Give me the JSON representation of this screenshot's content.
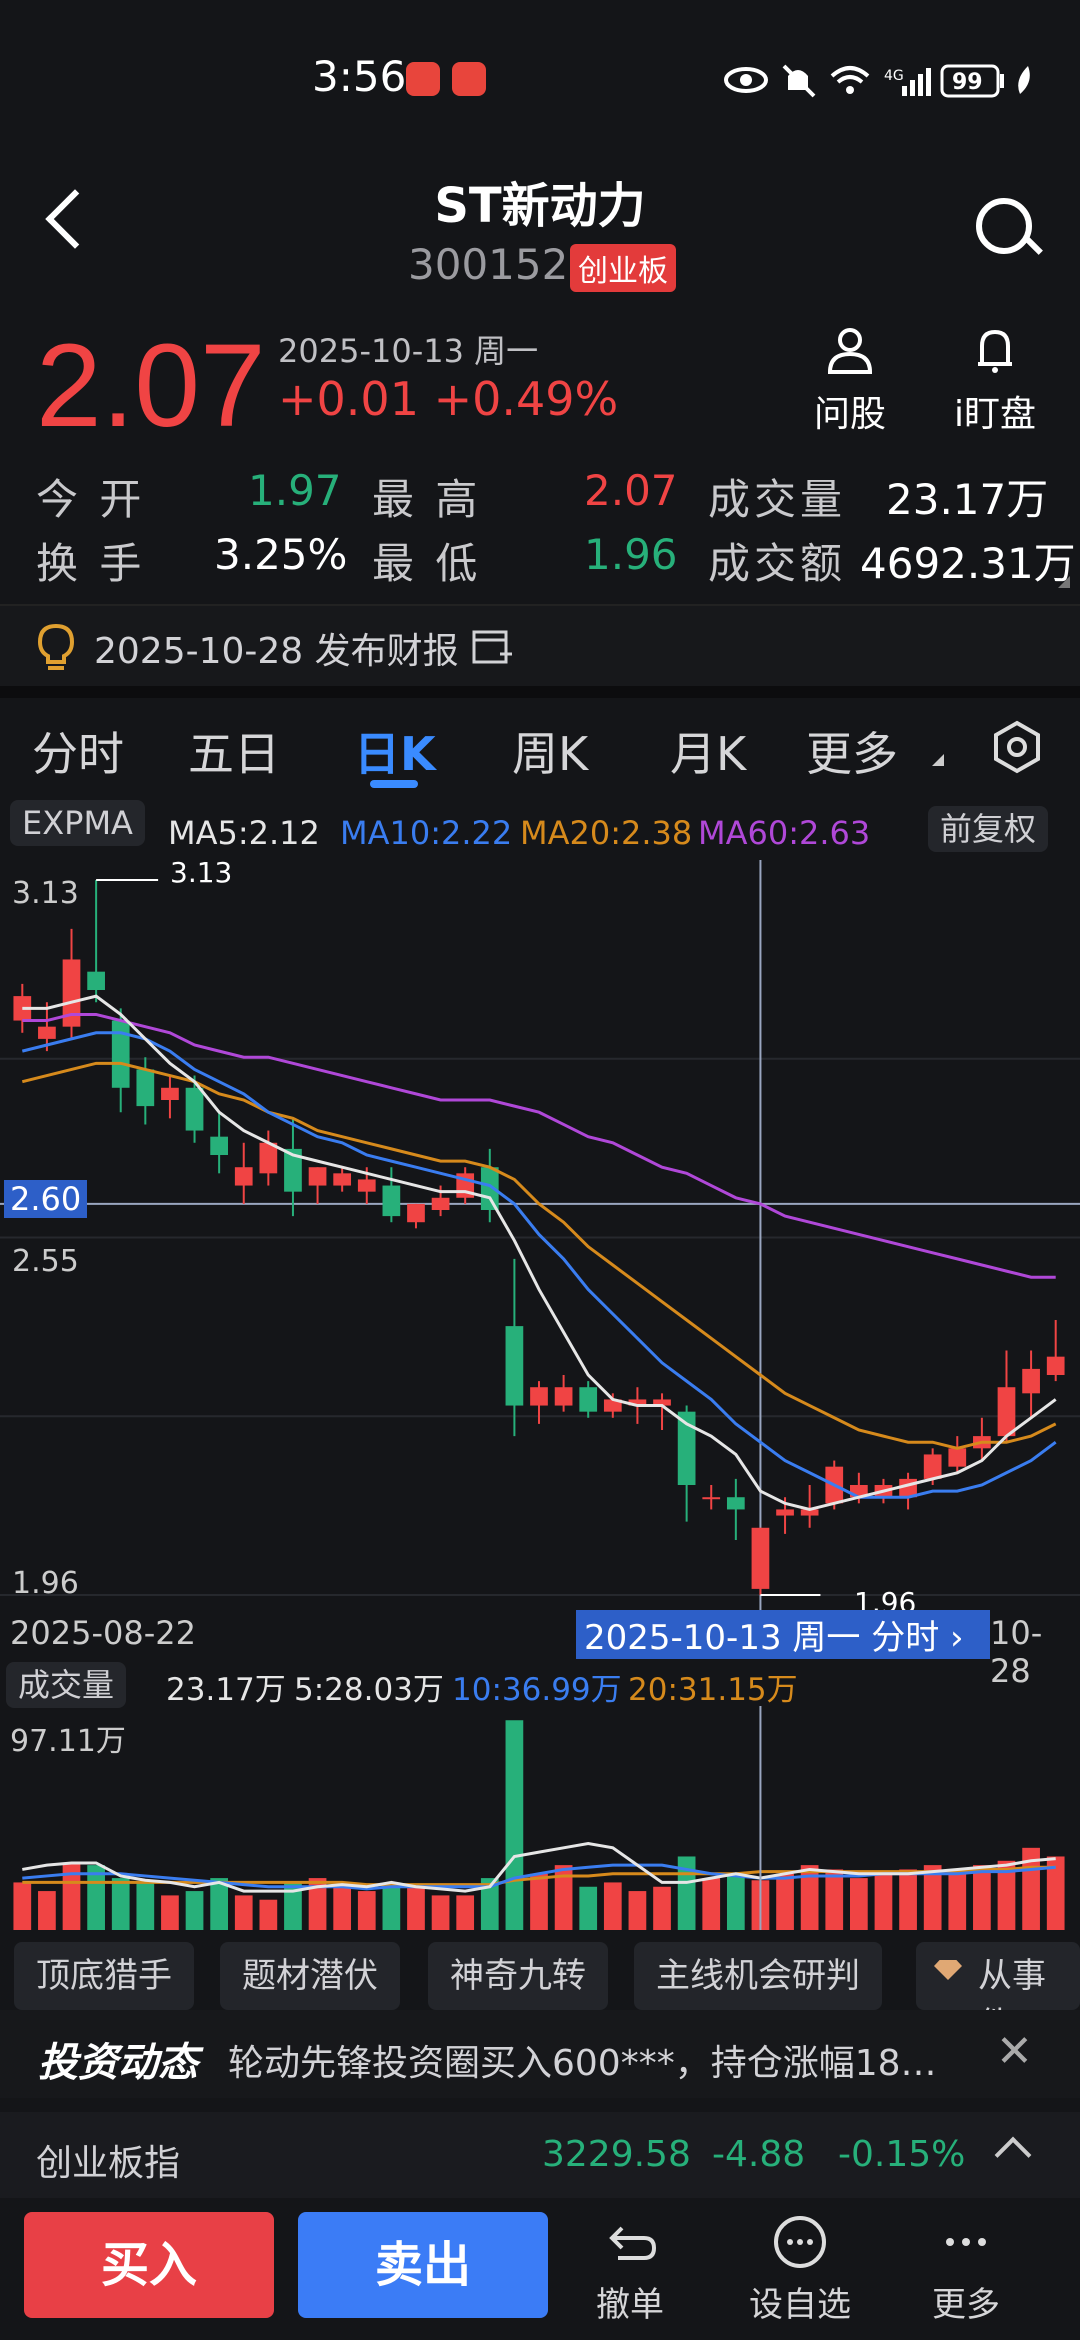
{
  "status": {
    "time": "3:56",
    "battery": "99",
    "network": "4G"
  },
  "header": {
    "title": "ST新动力",
    "code": "300152",
    "board": "创业板"
  },
  "quote": {
    "price": "2.07",
    "date": "2025-10-13 周一",
    "change": "+0.01",
    "change_pct": "+0.49%",
    "ask_label": "问股",
    "watch_label": "i盯盘"
  },
  "stats": {
    "open_label": "今 开",
    "open": "1.97",
    "high_label": "最 高",
    "high": "2.07",
    "vol_label": "成交量",
    "vol": "23.17万",
    "turnover_label": "换 手",
    "turnover": "3.25%",
    "low_label": "最 低",
    "low": "1.96",
    "amount_label": "成交额",
    "amount": "4692.31万"
  },
  "notice": {
    "text": "2025-10-28 发布财报"
  },
  "tabs": [
    "分时",
    "五日",
    "日K",
    "周K",
    "月K",
    "更多"
  ],
  "active_tab": "日K",
  "indicators": {
    "mode": "EXPMA",
    "ma5": "MA5:2.12",
    "ma10": "MA10:2.22",
    "ma20": "MA20:2.38",
    "ma60": "MA60:2.63",
    "adjust": "前复权"
  },
  "chart_labels": {
    "top_price": "3.13",
    "marker_high": "3.13",
    "cursor_price": "2.60",
    "mid_price": "2.55",
    "bottom_price": "1.96",
    "marker_low": "1.96",
    "start_date": "2025-08-22",
    "cursor_date": "2025-10-13 周一 分时",
    "end_date": "10-28"
  },
  "volume_row": {
    "label": "成交量",
    "v1": "23.17万",
    "v5": "5:28.03万",
    "v10": "10:36.99万",
    "v20": "20:31.15万",
    "max": "97.11万"
  },
  "colors": {
    "up": "#f04444",
    "down": "#27b07a",
    "ma5": "#e6e6e6",
    "ma10": "#3a7df0",
    "ma20": "#d68a1c",
    "ma60": "#b048d8",
    "accent": "#3a8bff"
  },
  "chart_data": {
    "type": "candlestick",
    "ylim": [
      1.96,
      3.13
    ],
    "candles": [
      {
        "o": 2.9,
        "h": 2.96,
        "l": 2.88,
        "c": 2.94
      },
      {
        "o": 2.87,
        "h": 2.93,
        "l": 2.85,
        "c": 2.89
      },
      {
        "o": 2.89,
        "h": 3.05,
        "l": 2.87,
        "c": 3.0
      },
      {
        "o": 2.98,
        "h": 3.13,
        "l": 2.93,
        "c": 2.95
      },
      {
        "o": 2.9,
        "h": 2.92,
        "l": 2.75,
        "c": 2.79
      },
      {
        "o": 2.82,
        "h": 2.84,
        "l": 2.73,
        "c": 2.76
      },
      {
        "o": 2.77,
        "h": 2.81,
        "l": 2.74,
        "c": 2.79
      },
      {
        "o": 2.79,
        "h": 2.81,
        "l": 2.7,
        "c": 2.72
      },
      {
        "o": 2.71,
        "h": 2.75,
        "l": 2.65,
        "c": 2.68
      },
      {
        "o": 2.63,
        "h": 2.7,
        "l": 2.6,
        "c": 2.66
      },
      {
        "o": 2.65,
        "h": 2.72,
        "l": 2.63,
        "c": 2.7
      },
      {
        "o": 2.69,
        "h": 2.74,
        "l": 2.58,
        "c": 2.62
      },
      {
        "o": 2.63,
        "h": 2.66,
        "l": 2.6,
        "c": 2.66
      },
      {
        "o": 2.63,
        "h": 2.66,
        "l": 2.62,
        "c": 2.65
      },
      {
        "o": 2.62,
        "h": 2.66,
        "l": 2.6,
        "c": 2.64
      },
      {
        "o": 2.63,
        "h": 2.66,
        "l": 2.57,
        "c": 2.58
      },
      {
        "o": 2.57,
        "h": 2.6,
        "l": 2.56,
        "c": 2.6
      },
      {
        "o": 2.59,
        "h": 2.63,
        "l": 2.58,
        "c": 2.61
      },
      {
        "o": 2.61,
        "h": 2.66,
        "l": 2.6,
        "c": 2.65
      },
      {
        "o": 2.66,
        "h": 2.69,
        "l": 2.57,
        "c": 2.59
      },
      {
        "o": 2.4,
        "h": 2.51,
        "l": 2.22,
        "c": 2.27
      },
      {
        "o": 2.27,
        "h": 2.31,
        "l": 2.24,
        "c": 2.3
      },
      {
        "o": 2.27,
        "h": 2.32,
        "l": 2.26,
        "c": 2.3
      },
      {
        "o": 2.3,
        "h": 2.31,
        "l": 2.25,
        "c": 2.26
      },
      {
        "o": 2.26,
        "h": 2.29,
        "l": 2.25,
        "c": 2.28
      },
      {
        "o": 2.27,
        "h": 2.3,
        "l": 2.24,
        "c": 2.28
      },
      {
        "o": 2.27,
        "h": 2.29,
        "l": 2.23,
        "c": 2.28
      },
      {
        "o": 2.26,
        "h": 2.27,
        "l": 2.08,
        "c": 2.14
      },
      {
        "o": 2.12,
        "h": 2.14,
        "l": 2.1,
        "c": 2.12
      },
      {
        "o": 2.12,
        "h": 2.15,
        "l": 2.05,
        "c": 2.1
      },
      {
        "o": 1.97,
        "h": 2.07,
        "l": 1.96,
        "c": 2.07
      },
      {
        "o": 2.09,
        "h": 2.12,
        "l": 2.06,
        "c": 2.1
      },
      {
        "o": 2.09,
        "h": 2.14,
        "l": 2.07,
        "c": 2.1
      },
      {
        "o": 2.11,
        "h": 2.18,
        "l": 2.1,
        "c": 2.17
      },
      {
        "o": 2.12,
        "h": 2.16,
        "l": 2.11,
        "c": 2.14
      },
      {
        "o": 2.12,
        "h": 2.15,
        "l": 2.11,
        "c": 2.14
      },
      {
        "o": 2.12,
        "h": 2.16,
        "l": 2.1,
        "c": 2.15
      },
      {
        "o": 2.15,
        "h": 2.2,
        "l": 2.14,
        "c": 2.19
      },
      {
        "o": 2.17,
        "h": 2.22,
        "l": 2.16,
        "c": 2.2
      },
      {
        "o": 2.2,
        "h": 2.25,
        "l": 2.18,
        "c": 2.22
      },
      {
        "o": 2.22,
        "h": 2.36,
        "l": 2.21,
        "c": 2.3
      },
      {
        "o": 2.29,
        "h": 2.36,
        "l": 2.25,
        "c": 2.33
      },
      {
        "o": 2.32,
        "h": 2.41,
        "l": 2.31,
        "c": 2.35
      }
    ],
    "ma5": [
      2.92,
      2.92,
      2.93,
      2.94,
      2.91,
      2.87,
      2.83,
      2.8,
      2.75,
      2.72,
      2.7,
      2.68,
      2.67,
      2.66,
      2.65,
      2.64,
      2.63,
      2.62,
      2.62,
      2.61,
      2.54,
      2.46,
      2.39,
      2.32,
      2.28,
      2.27,
      2.27,
      2.24,
      2.22,
      2.19,
      2.13,
      2.11,
      2.1,
      2.11,
      2.12,
      2.13,
      2.14,
      2.15,
      2.16,
      2.18,
      2.22,
      2.25,
      2.28
    ],
    "ma10": [
      2.85,
      2.86,
      2.87,
      2.88,
      2.88,
      2.87,
      2.85,
      2.82,
      2.8,
      2.78,
      2.75,
      2.73,
      2.71,
      2.7,
      2.68,
      2.67,
      2.66,
      2.65,
      2.64,
      2.63,
      2.6,
      2.55,
      2.51,
      2.46,
      2.42,
      2.38,
      2.34,
      2.31,
      2.28,
      2.24,
      2.21,
      2.18,
      2.16,
      2.14,
      2.12,
      2.12,
      2.12,
      2.13,
      2.13,
      2.14,
      2.16,
      2.18,
      2.21
    ],
    "ma20": [
      2.8,
      2.81,
      2.82,
      2.83,
      2.83,
      2.82,
      2.81,
      2.8,
      2.78,
      2.77,
      2.75,
      2.74,
      2.72,
      2.71,
      2.7,
      2.69,
      2.68,
      2.67,
      2.67,
      2.66,
      2.64,
      2.6,
      2.57,
      2.53,
      2.5,
      2.47,
      2.44,
      2.41,
      2.38,
      2.35,
      2.32,
      2.29,
      2.27,
      2.25,
      2.23,
      2.22,
      2.21,
      2.21,
      2.2,
      2.21,
      2.21,
      2.22,
      2.24
    ],
    "ma60": [
      2.9,
      2.9,
      2.91,
      2.91,
      2.9,
      2.89,
      2.88,
      2.86,
      2.85,
      2.84,
      2.84,
      2.83,
      2.82,
      2.81,
      2.8,
      2.79,
      2.78,
      2.77,
      2.77,
      2.77,
      2.76,
      2.75,
      2.73,
      2.71,
      2.7,
      2.68,
      2.66,
      2.65,
      2.63,
      2.61,
      2.6,
      2.58,
      2.57,
      2.56,
      2.55,
      2.54,
      2.53,
      2.52,
      2.51,
      2.5,
      2.49,
      2.48,
      2.48
    ],
    "volume": [
      22,
      18,
      31,
      30,
      24,
      22,
      16,
      18,
      24,
      16,
      14,
      22,
      24,
      20,
      18,
      22,
      20,
      16,
      16,
      24,
      97,
      26,
      30,
      20,
      22,
      18,
      20,
      34,
      24,
      26,
      23,
      26,
      30,
      28,
      24,
      26,
      28,
      30,
      28,
      30,
      32,
      38,
      34
    ],
    "vol_ma5": [
      28,
      30,
      31,
      31,
      25,
      23,
      22,
      20,
      22,
      18,
      18,
      18,
      20,
      21,
      20,
      22,
      20,
      19,
      18,
      20,
      34,
      36,
      38,
      40,
      38,
      30,
      22,
      22,
      24,
      26,
      24,
      26,
      28,
      27,
      26,
      26,
      26,
      27,
      28,
      29,
      30,
      32,
      33
    ],
    "vol_ma10": [
      24,
      25,
      26,
      26,
      26,
      25,
      24,
      23,
      22,
      21,
      20,
      20,
      20,
      20,
      19,
      20,
      20,
      20,
      20,
      20,
      24,
      26,
      28,
      29,
      30,
      30,
      30,
      28,
      26,
      25,
      24,
      24,
      25,
      25,
      25,
      26,
      26,
      26,
      26,
      27,
      27,
      28,
      29
    ],
    "vol_ma20": [
      22,
      22,
      22,
      22,
      22,
      22,
      22,
      22,
      22,
      22,
      22,
      22,
      22,
      22,
      21,
      21,
      21,
      21,
      21,
      21,
      23,
      24,
      25,
      25,
      26,
      26,
      26,
      26,
      26,
      26,
      27,
      27,
      27,
      27,
      27,
      27,
      27,
      27,
      27,
      28,
      28,
      29,
      29
    ]
  },
  "chips": [
    "顶底猎手",
    "题材潜伏",
    "神奇九转",
    "主线机会研判",
    "从事件"
  ],
  "news": {
    "brand": "投资动态",
    "text": "轮动先锋投资圈买入600***，持仓涨幅18…"
  },
  "index": {
    "name": "创业板指",
    "value": "3229.58",
    "change": "-4.88",
    "pct": "-0.15%"
  },
  "footer": {
    "buy": "买入",
    "sell": "卖出",
    "undo": "撤单",
    "watch": "设自选",
    "more": "更多"
  }
}
